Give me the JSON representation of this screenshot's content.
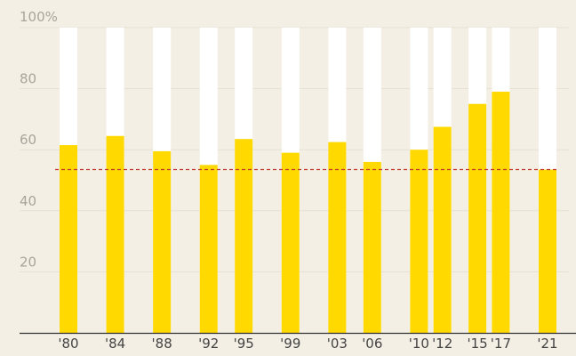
{
  "chart_data": {
    "type": "bar",
    "title": "",
    "xlabel": "",
    "ylabel": "",
    "ylim": [
      0,
      100
    ],
    "y_ticks": [
      {
        "value": 20,
        "label": "20"
      },
      {
        "value": 40,
        "label": "40"
      },
      {
        "value": 60,
        "label": "60"
      },
      {
        "value": 80,
        "label": "80"
      },
      {
        "value": 100,
        "label": "100%"
      }
    ],
    "x_axis": {
      "type": "year",
      "min": 1978,
      "max": 2022
    },
    "categories": [
      "'80",
      "'84",
      "'88",
      "'92",
      "'95",
      "'99",
      "'03",
      "'06",
      "'10",
      "'12",
      "'15",
      "'17",
      "'21"
    ],
    "years": [
      1980,
      1984,
      1988,
      1992,
      1995,
      1999,
      2003,
      2006,
      2010,
      2012,
      2015,
      2017,
      2021
    ],
    "values": [
      61.5,
      64.5,
      59.5,
      55,
      63.5,
      59,
      62.5,
      56,
      60,
      67.5,
      75,
      79,
      53.5
    ],
    "background_bar_value": 100,
    "reference_line": {
      "value": 53.5,
      "style": "dashed"
    },
    "grid": true,
    "legend": "none",
    "colors": {
      "bar": "#ffd900",
      "bar_background": "#ffffff",
      "reference_line": "#c0392b",
      "grid": "#e6e1d4",
      "axis": "#333333",
      "background": "#f3efe5"
    }
  }
}
